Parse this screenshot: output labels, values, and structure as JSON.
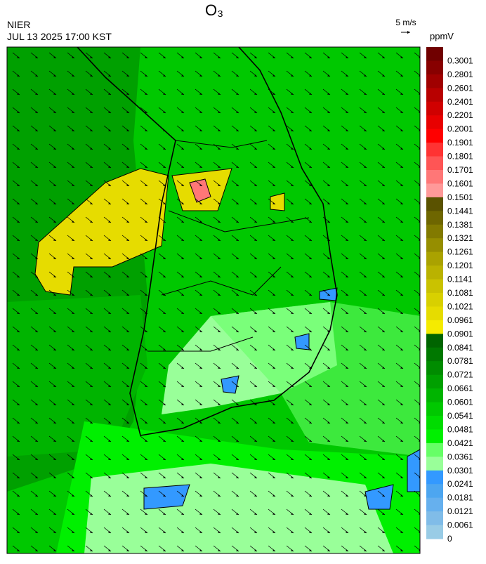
{
  "title": "O₃",
  "agency": "NIER",
  "timestamp": "JUL 13 2025 17:00 KST",
  "wind_scale": "5 m/s",
  "colorbar": {
    "unit": "ppmV",
    "labels": [
      0.3001,
      0.2801,
      0.2601,
      0.2401,
      0.2201,
      0.2001,
      0.1901,
      0.1801,
      0.1701,
      0.1601,
      0.1501,
      0.1441,
      0.1381,
      0.1321,
      0.1261,
      0.1201,
      0.1141,
      0.1081,
      0.1021,
      0.0961,
      0.0901,
      0.0841,
      0.0781,
      0.0721,
      0.0661,
      0.0601,
      0.0541,
      0.0481,
      0.0421,
      0.0361,
      0.0301,
      0.0241,
      0.0181,
      0.0121,
      0.0061,
      0
    ],
    "colors": [
      "#700000",
      "#880000",
      "#a00000",
      "#b80000",
      "#d00000",
      "#e80000",
      "#ff0000",
      "#ff3333",
      "#ff5555",
      "#ff7777",
      "#ff9999",
      "#5a5200",
      "#6e6600",
      "#827a00",
      "#968e00",
      "#aaa200",
      "#bab200",
      "#cac200",
      "#d8d000",
      "#e6dc00",
      "#f5eb00",
      "#006400",
      "#007800",
      "#008c00",
      "#00a000",
      "#00b400",
      "#00c800",
      "#00dc00",
      "#00f000",
      "#66ff66",
      "#99ff99",
      "#3399ff",
      "#4da6f0",
      "#66b0ee",
      "#80bce8",
      "#99cce6"
    ]
  }
}
